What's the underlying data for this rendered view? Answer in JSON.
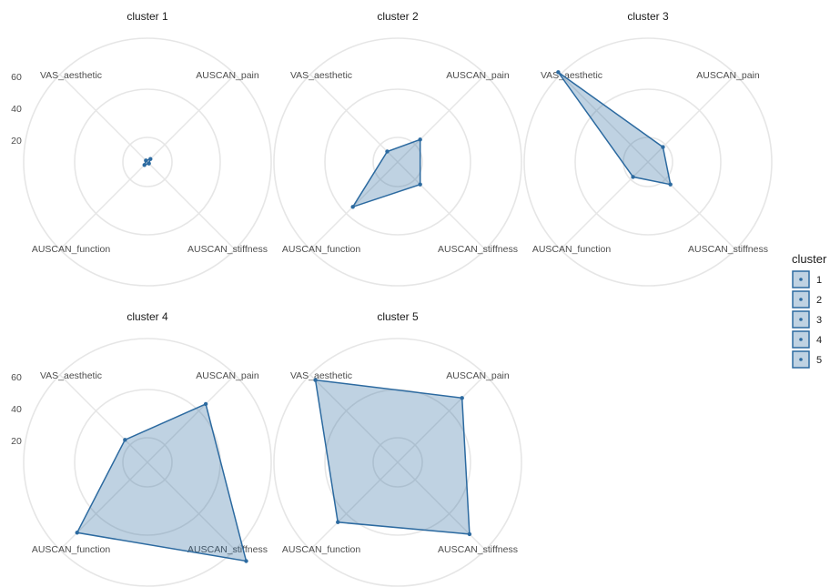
{
  "colors": {
    "series": "#2c6aa0",
    "grid": "#e6e6e6"
  },
  "chart_data": {
    "type": "radar",
    "axes": [
      "AUSCAN_pain",
      "AUSCAN_stiffness",
      "AUSCAN_function",
      "VAS_aesthetic"
    ],
    "axis_labels": {
      "AUSCAN_pain": "AUSCAN_pain",
      "AUSCAN_stiffness": "AUSCAN_stiffness",
      "AUSCAN_function": "AUSCAN_function",
      "VAS_aesthetic": "VAS_aesthetic"
    },
    "rlim": [
      0,
      60
    ],
    "rticks": [
      20,
      40,
      60
    ],
    "grid": true,
    "legend": {
      "title": "cluster",
      "position": "right",
      "entries": [
        "1",
        "2",
        "3",
        "4",
        "5"
      ]
    },
    "panel_title_prefix": "cluster",
    "panels": [
      {
        "cluster": "1",
        "title": "cluster 1",
        "values": {
          "AUSCAN_pain": 2,
          "AUSCAN_stiffness": 1,
          "AUSCAN_function": 2,
          "VAS_aesthetic": 1
        }
      },
      {
        "cluster": "2",
        "title": "cluster 2",
        "values": {
          "AUSCAN_pain": 15,
          "AUSCAN_stiffness": 15,
          "AUSCAN_function": 30,
          "VAS_aesthetic": 7
        }
      },
      {
        "cluster": "3",
        "title": "cluster 3",
        "values": {
          "AUSCAN_pain": 10,
          "AUSCAN_stiffness": 15,
          "AUSCAN_function": 10,
          "VAS_aesthetic": 60
        }
      },
      {
        "cluster": "4",
        "title": "cluster 4",
        "values": {
          "AUSCAN_pain": 39,
          "AUSCAN_stiffness": 66,
          "AUSCAN_function": 47,
          "VAS_aesthetic": 15
        }
      },
      {
        "cluster": "5",
        "title": "cluster 5",
        "values": {
          "AUSCAN_pain": 43,
          "AUSCAN_stiffness": 48,
          "AUSCAN_function": 40,
          "VAS_aesthetic": 55
        }
      }
    ]
  }
}
